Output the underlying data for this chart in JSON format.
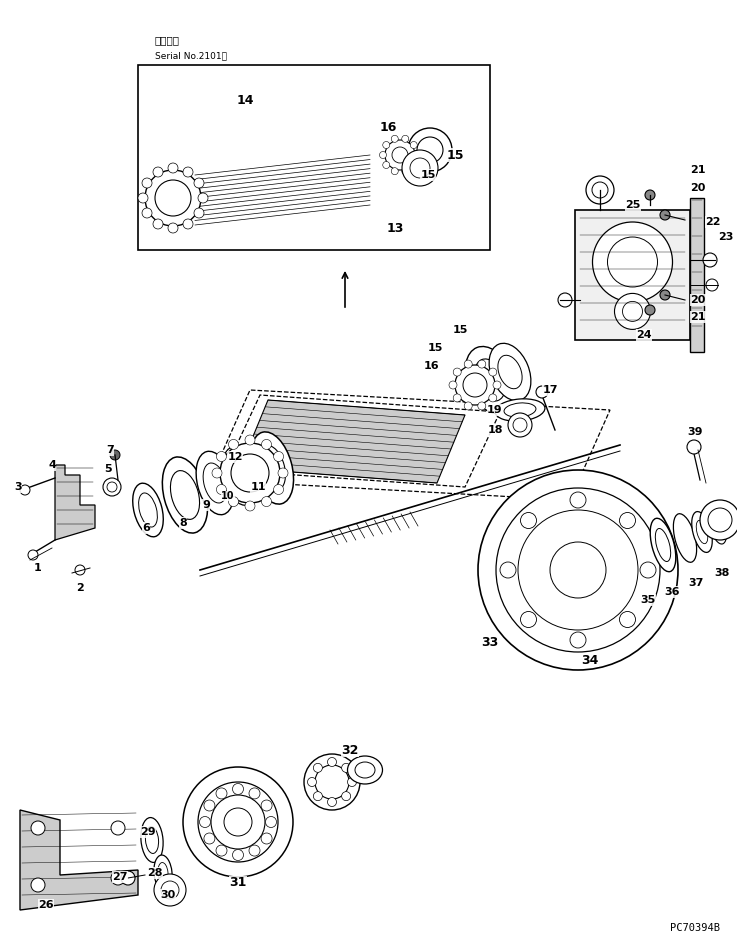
{
  "title_jp": "通用号機",
  "title_serial": "Serial No.2101～",
  "part_code": "PC70394B",
  "bg_color": "#ffffff",
  "fig_width": 7.37,
  "fig_height": 9.41,
  "dpi": 100
}
